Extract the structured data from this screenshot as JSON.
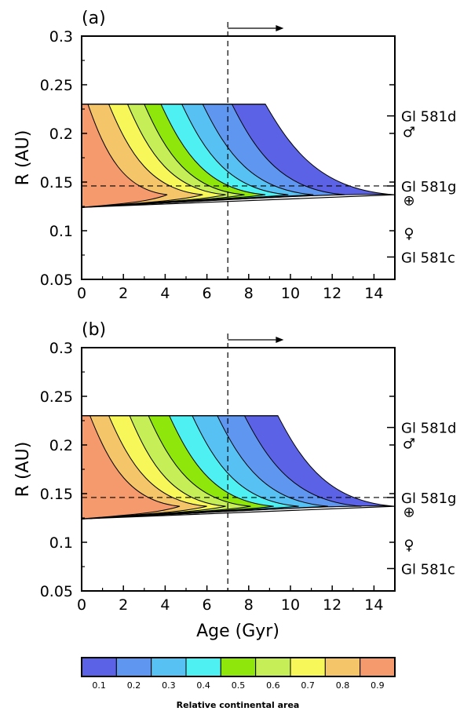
{
  "chart_data": [
    {
      "type": "contour",
      "panel_label": "(a)",
      "xlim": [
        0,
        15
      ],
      "ylim": [
        0.05,
        0.3
      ],
      "xticks": [
        0,
        2,
        4,
        6,
        8,
        10,
        12,
        14
      ],
      "yticks": [
        0.05,
        0.1,
        0.15,
        0.2,
        0.25,
        0.3
      ],
      "xlabel": "",
      "ylabel": "R (AU)",
      "vline_x": 7,
      "hline_y": 0.146,
      "arrow_from_x": 7,
      "arrow_to_x": 9.3,
      "contour_levels": [
        0.1,
        0.2,
        0.3,
        0.4,
        0.5,
        0.6,
        0.7,
        0.8,
        0.9
      ],
      "region_top_R": 0.23,
      "region_bottom_R_age0": 0.124,
      "region_bottom_R_age15": 0.137,
      "contour_top_ages": [
        8.8,
        7.2,
        5.8,
        4.8,
        3.8,
        3.0,
        2.2,
        1.3,
        0.3
      ],
      "contour_nose_ages": [
        15.0,
        12.6,
        11.1,
        9.9,
        8.8,
        7.8,
        6.9,
        5.8,
        4.1
      ],
      "markers": [
        {
          "label": "Gl 581d",
          "R": 0.218,
          "kind": "text"
        },
        {
          "label": "♂",
          "R": 0.202,
          "kind": "symbol"
        },
        {
          "label": "Gl 581g",
          "R": 0.146,
          "kind": "text"
        },
        {
          "label": "⊕",
          "R": 0.132,
          "kind": "symbol"
        },
        {
          "label": "♀",
          "R": 0.098,
          "kind": "symbol"
        },
        {
          "label": "Gl 581c",
          "R": 0.073,
          "kind": "text"
        }
      ]
    },
    {
      "type": "contour",
      "panel_label": "(b)",
      "xlim": [
        0,
        15
      ],
      "ylim": [
        0.05,
        0.3
      ],
      "xticks": [
        0,
        2,
        4,
        6,
        8,
        10,
        12,
        14
      ],
      "yticks": [
        0.05,
        0.1,
        0.15,
        0.2,
        0.25,
        0.3
      ],
      "xlabel": "Age (Gyr)",
      "ylabel": "R (AU)",
      "vline_x": 7,
      "hline_y": 0.146,
      "arrow_from_x": 7,
      "arrow_to_x": 9.3,
      "contour_levels": [
        0.1,
        0.2,
        0.3,
        0.4,
        0.5,
        0.6,
        0.7,
        0.8,
        0.9
      ],
      "region_top_R": 0.23,
      "region_bottom_R_age0": 0.124,
      "region_bottom_R_age15": 0.137,
      "contour_top_ages": [
        9.4,
        7.8,
        6.5,
        5.3,
        4.2,
        3.2,
        2.3,
        1.3,
        0.4
      ],
      "contour_nose_ages": [
        15.0,
        13.4,
        11.8,
        10.4,
        9.2,
        8.1,
        6.9,
        6.0,
        4.7
      ],
      "markers": [
        {
          "label": "Gl 581d",
          "R": 0.218,
          "kind": "text"
        },
        {
          "label": "♂",
          "R": 0.202,
          "kind": "symbol"
        },
        {
          "label": "Gl 581g",
          "R": 0.146,
          "kind": "text"
        },
        {
          "label": "⊕",
          "R": 0.132,
          "kind": "symbol"
        },
        {
          "label": "♀",
          "R": 0.098,
          "kind": "symbol"
        },
        {
          "label": "Gl 581c",
          "R": 0.073,
          "kind": "text"
        }
      ]
    }
  ],
  "colorbar": {
    "label": "Relative continental area",
    "tick_labels": [
      "0.1",
      "0.2",
      "0.3",
      "0.4",
      "0.5",
      "0.6",
      "0.7",
      "0.8",
      "0.9"
    ],
    "colors": [
      "#5b62e6",
      "#5f97f0",
      "#56c1f2",
      "#4ff0f2",
      "#8ee60a",
      "#c6ee56",
      "#f7f75a",
      "#f5c56a",
      "#f59a6c"
    ]
  }
}
